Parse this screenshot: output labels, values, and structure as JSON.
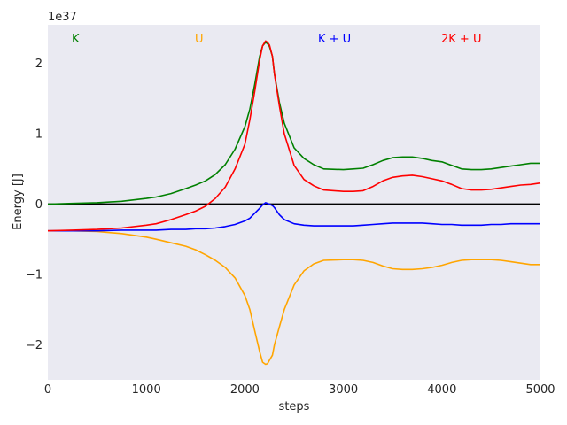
{
  "chart_data": {
    "type": "line",
    "xlabel": "steps",
    "ylabel": "Energy [J]",
    "y_offset_label": "1e37",
    "xlim": [
      0,
      5000
    ],
    "ylim": [
      -2.5,
      2.55
    ],
    "x_ticks": [
      0,
      1000,
      2000,
      3000,
      4000,
      5000
    ],
    "y_ticks": [
      -2,
      -1,
      0,
      1,
      2
    ],
    "y_tick_labels": [
      "−2",
      "−1",
      "0",
      "1",
      "2"
    ],
    "grid": false,
    "background": "#eaeaf2",
    "zero_line": {
      "y": 0,
      "color": "#000000"
    },
    "legend_position": "top",
    "series": [
      {
        "name": "K",
        "color": "#008000",
        "x": [
          0,
          250,
          500,
          750,
          1000,
          1100,
          1250,
          1400,
          1500,
          1600,
          1700,
          1800,
          1900,
          2000,
          2050,
          2100,
          2150,
          2180,
          2210,
          2230,
          2250,
          2280,
          2300,
          2350,
          2400,
          2500,
          2600,
          2700,
          2800,
          3000,
          3100,
          3200,
          3300,
          3400,
          3500,
          3600,
          3700,
          3800,
          3900,
          4000,
          4100,
          4200,
          4300,
          4400,
          4500,
          4600,
          4700,
          4800,
          4900,
          5000
        ],
        "values": [
          0.0,
          0.01,
          0.02,
          0.04,
          0.08,
          0.1,
          0.15,
          0.22,
          0.27,
          0.33,
          0.42,
          0.56,
          0.78,
          1.1,
          1.35,
          1.7,
          2.1,
          2.25,
          2.3,
          2.28,
          2.24,
          2.1,
          1.85,
          1.45,
          1.15,
          0.8,
          0.65,
          0.56,
          0.5,
          0.49,
          0.5,
          0.51,
          0.56,
          0.62,
          0.66,
          0.67,
          0.67,
          0.65,
          0.62,
          0.6,
          0.55,
          0.5,
          0.49,
          0.49,
          0.5,
          0.52,
          0.54,
          0.56,
          0.58,
          0.58
        ]
      },
      {
        "name": "U",
        "color": "#ffa500",
        "x": [
          0,
          250,
          500,
          750,
          1000,
          1100,
          1250,
          1400,
          1500,
          1600,
          1700,
          1800,
          1900,
          2000,
          2050,
          2100,
          2150,
          2180,
          2210,
          2230,
          2250,
          2280,
          2300,
          2350,
          2400,
          2500,
          2600,
          2700,
          2800,
          3000,
          3100,
          3200,
          3300,
          3400,
          3500,
          3600,
          3700,
          3800,
          3900,
          4000,
          4100,
          4200,
          4300,
          4400,
          4500,
          4600,
          4700,
          4800,
          4900,
          5000
        ],
        "values": [
          -0.38,
          -0.38,
          -0.39,
          -0.42,
          -0.47,
          -0.5,
          -0.55,
          -0.6,
          -0.65,
          -0.72,
          -0.8,
          -0.9,
          -1.05,
          -1.3,
          -1.5,
          -1.8,
          -2.1,
          -2.25,
          -2.28,
          -2.27,
          -2.22,
          -2.15,
          -2.0,
          -1.75,
          -1.5,
          -1.15,
          -0.95,
          -0.85,
          -0.8,
          -0.79,
          -0.79,
          -0.8,
          -0.83,
          -0.88,
          -0.92,
          -0.93,
          -0.93,
          -0.92,
          -0.9,
          -0.87,
          -0.83,
          -0.8,
          -0.79,
          -0.79,
          -0.79,
          -0.8,
          -0.82,
          -0.84,
          -0.86,
          -0.86
        ]
      },
      {
        "name": "K + U",
        "color": "#0000ff",
        "x": [
          0,
          250,
          500,
          750,
          1000,
          1100,
          1250,
          1400,
          1500,
          1600,
          1700,
          1800,
          1900,
          2000,
          2050,
          2100,
          2150,
          2180,
          2210,
          2230,
          2250,
          2280,
          2300,
          2350,
          2400,
          2500,
          2600,
          2700,
          2800,
          3000,
          3100,
          3200,
          3300,
          3400,
          3500,
          3600,
          3700,
          3800,
          3900,
          4000,
          4100,
          4200,
          4300,
          4400,
          4500,
          4600,
          4700,
          4800,
          4900,
          5000
        ],
        "values": [
          -0.38,
          -0.38,
          -0.38,
          -0.37,
          -0.37,
          -0.37,
          -0.36,
          -0.36,
          -0.35,
          -0.35,
          -0.34,
          -0.32,
          -0.29,
          -0.24,
          -0.2,
          -0.13,
          -0.06,
          -0.01,
          0.02,
          0.01,
          0.0,
          -0.02,
          -0.05,
          -0.15,
          -0.22,
          -0.28,
          -0.3,
          -0.31,
          -0.31,
          -0.31,
          -0.31,
          -0.3,
          -0.29,
          -0.28,
          -0.27,
          -0.27,
          -0.27,
          -0.27,
          -0.28,
          -0.29,
          -0.29,
          -0.3,
          -0.3,
          -0.3,
          -0.29,
          -0.29,
          -0.28,
          -0.28,
          -0.28,
          -0.28
        ]
      },
      {
        "name": "2K + U",
        "color": "#ff0000",
        "x": [
          0,
          250,
          500,
          750,
          1000,
          1100,
          1250,
          1400,
          1500,
          1600,
          1700,
          1800,
          1900,
          2000,
          2050,
          2100,
          2150,
          2180,
          2210,
          2230,
          2250,
          2280,
          2300,
          2350,
          2400,
          2500,
          2600,
          2700,
          2800,
          3000,
          3100,
          3200,
          3300,
          3400,
          3500,
          3600,
          3700,
          3800,
          3900,
          4000,
          4100,
          4200,
          4300,
          4400,
          4500,
          4600,
          4700,
          4800,
          4900,
          5000
        ],
        "values": [
          -0.38,
          -0.37,
          -0.36,
          -0.34,
          -0.3,
          -0.28,
          -0.22,
          -0.15,
          -0.1,
          -0.03,
          0.08,
          0.24,
          0.5,
          0.85,
          1.2,
          1.6,
          2.05,
          2.25,
          2.32,
          2.3,
          2.26,
          2.1,
          1.85,
          1.4,
          1.0,
          0.55,
          0.35,
          0.26,
          0.2,
          0.18,
          0.18,
          0.19,
          0.25,
          0.33,
          0.38,
          0.4,
          0.41,
          0.39,
          0.36,
          0.33,
          0.28,
          0.22,
          0.2,
          0.2,
          0.21,
          0.23,
          0.25,
          0.27,
          0.28,
          0.3
        ]
      }
    ]
  }
}
